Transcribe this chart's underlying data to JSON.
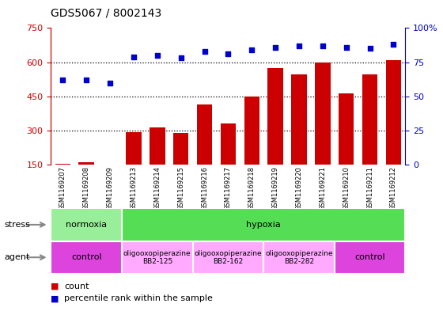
{
  "title": "GDS5067 / 8002143",
  "samples": [
    "GSM1169207",
    "GSM1169208",
    "GSM1169209",
    "GSM1169213",
    "GSM1169214",
    "GSM1169215",
    "GSM1169216",
    "GSM1169217",
    "GSM1169218",
    "GSM1169219",
    "GSM1169220",
    "GSM1169221",
    "GSM1169210",
    "GSM1169211",
    "GSM1169212"
  ],
  "counts": [
    155,
    160,
    150,
    295,
    315,
    290,
    415,
    330,
    450,
    575,
    545,
    600,
    465,
    545,
    610
  ],
  "percentiles": [
    62,
    62,
    60,
    79,
    80,
    78,
    83,
    81,
    84,
    86,
    87,
    87,
    86,
    85,
    88
  ],
  "bar_color": "#cc0000",
  "dot_color": "#0000cc",
  "ylim_left": [
    150,
    750
  ],
  "ylim_right": [
    0,
    100
  ],
  "yticks_left": [
    150,
    300,
    450,
    600,
    750
  ],
  "yticks_right": [
    0,
    25,
    50,
    75,
    100
  ],
  "stress_groups": [
    {
      "label": "normoxia",
      "start": 0,
      "end": 3,
      "color": "#99ee99"
    },
    {
      "label": "hypoxia",
      "start": 3,
      "end": 15,
      "color": "#55dd55"
    }
  ],
  "agent_groups": [
    {
      "label": "control",
      "start": 0,
      "end": 3,
      "color": "#dd44dd",
      "fontsize": 8,
      "bold": false
    },
    {
      "label": "oligooxopiperazine\nBB2-125",
      "start": 3,
      "end": 6,
      "color": "#ffaaff",
      "fontsize": 6.5,
      "bold": false
    },
    {
      "label": "oligooxopiperazine\nBB2-162",
      "start": 6,
      "end": 9,
      "color": "#ffaaff",
      "fontsize": 6.5,
      "bold": false
    },
    {
      "label": "oligooxopiperazine\nBB2-282",
      "start": 9,
      "end": 12,
      "color": "#ffaaff",
      "fontsize": 6.5,
      "bold": false
    },
    {
      "label": "control",
      "start": 12,
      "end": 15,
      "color": "#dd44dd",
      "fontsize": 8,
      "bold": false
    }
  ],
  "left_axis_color": "#cc0000",
  "right_axis_color": "#0000cc",
  "bg_color": "#ffffff",
  "plot_bg_color": "#ffffff",
  "grid_color": "#000000",
  "legend_items": [
    {
      "color": "#cc0000",
      "label": "count"
    },
    {
      "color": "#0000cc",
      "label": "percentile rank within the sample"
    }
  ]
}
